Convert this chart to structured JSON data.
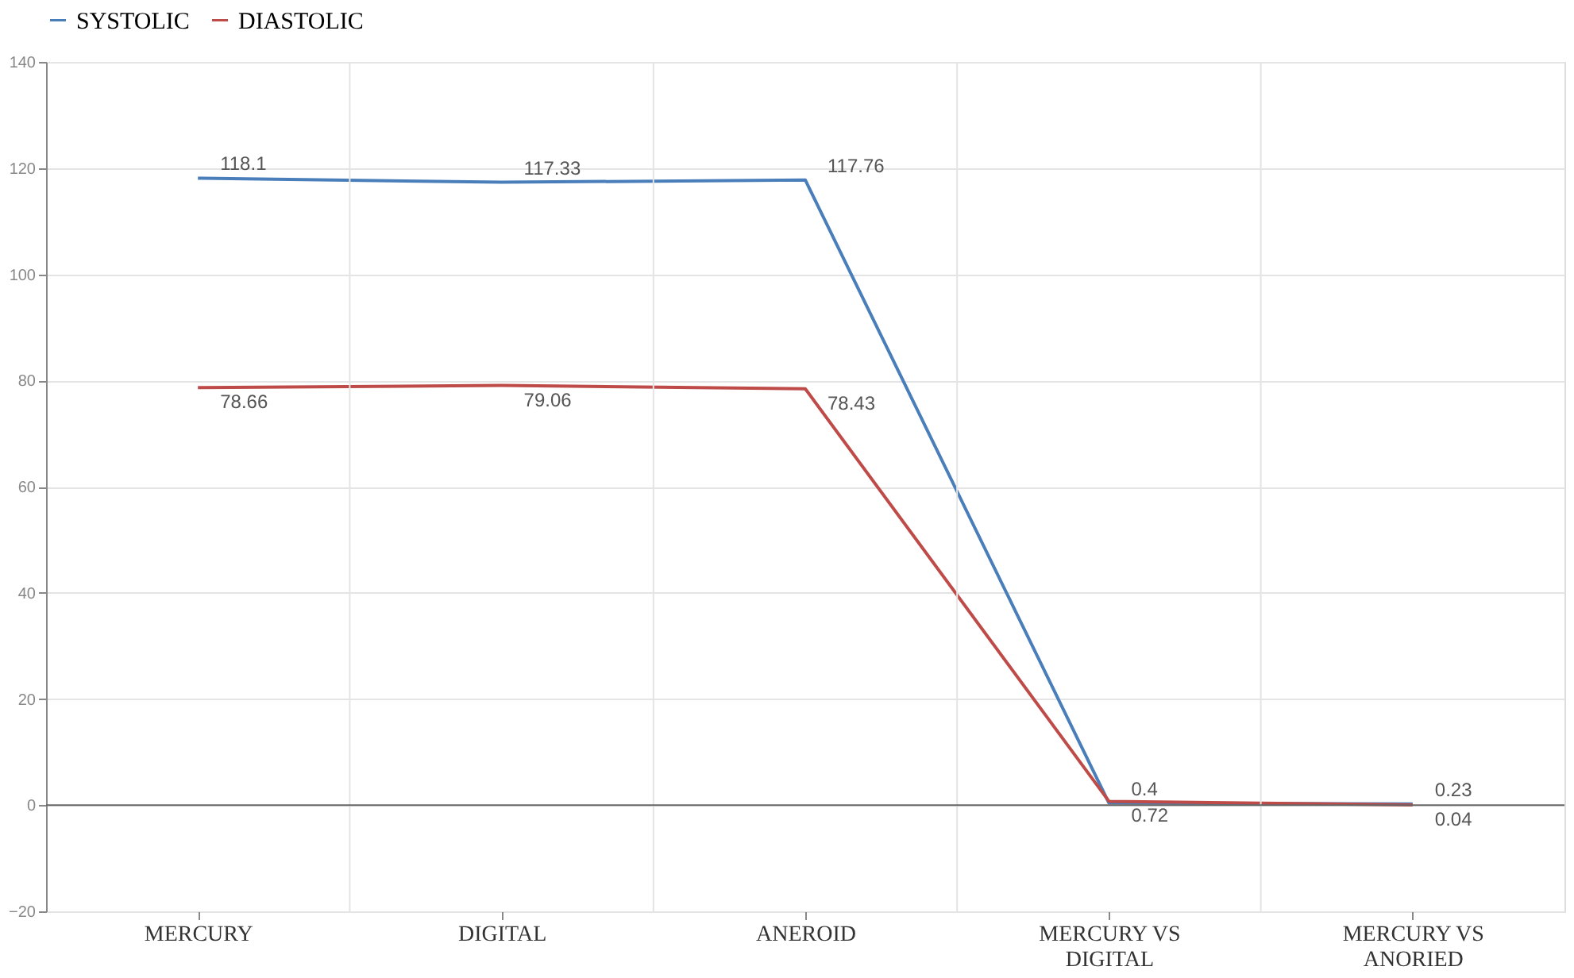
{
  "chart_data": {
    "type": "line",
    "categories": [
      "MERCURY",
      "DIGITAL",
      "ANEROID",
      "MERCURY VS DIGITAL",
      "MERCURY VS ANORIED"
    ],
    "series": [
      {
        "name": "SYSTOLIC",
        "color": "#4a7ebb",
        "values": [
          118.1,
          117.33,
          117.76,
          0.4,
          0.23
        ]
      },
      {
        "name": "DIASTOLIC",
        "color": "#be4b48",
        "values": [
          78.66,
          79.06,
          78.43,
          0.72,
          0.04
        ]
      }
    ],
    "ylim": [
      -20,
      140
    ],
    "yticks": [
      -20,
      0,
      20,
      40,
      60,
      80,
      100,
      120,
      140
    ],
    "grid": true,
    "legend": "top",
    "data_labels": true,
    "marker": "none",
    "line_style": "solid"
  }
}
